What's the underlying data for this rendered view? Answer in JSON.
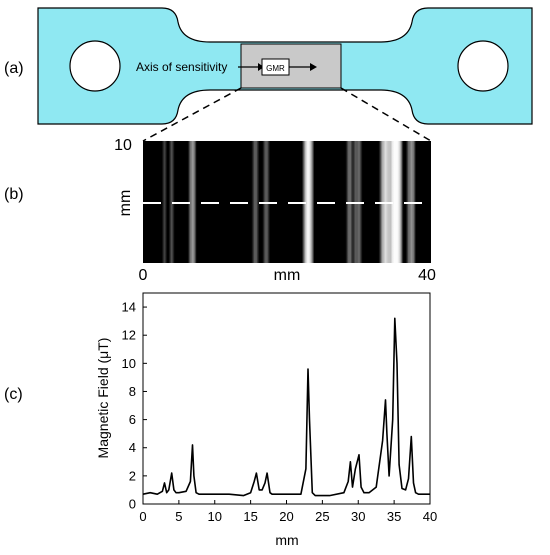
{
  "panels": {
    "a": {
      "label": "(a)",
      "sensitivity_label": "Axis of sensitivity",
      "sensor_label": "GMR"
    },
    "b": {
      "label": "(b)",
      "ylabel": "mm",
      "xlabel": "mm",
      "x_ticks": [
        "0",
        "40"
      ],
      "y_ticks": [
        "10"
      ]
    },
    "c": {
      "label": "(c)"
    }
  },
  "colors": {
    "specimen_fill": "#8fe8f2",
    "sensor_region": "#c9c9c9",
    "scan_background": "#000000",
    "scan_line": "#ffffff",
    "trace": "#000000"
  },
  "chart_data": {
    "type": "line",
    "xlabel": "mm",
    "ylabel": "Magnetic Field (μT)",
    "xlim": [
      0,
      40
    ],
    "ylim": [
      0,
      15
    ],
    "x_ticks": [
      0,
      5,
      10,
      15,
      20,
      25,
      30,
      35,
      40
    ],
    "y_ticks": [
      0,
      2,
      4,
      6,
      8,
      10,
      12,
      14
    ],
    "grid": false,
    "series": [
      {
        "x": [
          0.0,
          1.0,
          2.0,
          2.7,
          3.0,
          3.3,
          3.6,
          4.0,
          4.3,
          4.6,
          5.0,
          6.0,
          6.6,
          6.9,
          7.1,
          7.4,
          7.8,
          8.5,
          10.0,
          12.0,
          14.0,
          15.0,
          15.5,
          15.8,
          16.2,
          16.6,
          17.0,
          17.3,
          17.7,
          18.0,
          20.0,
          22.0,
          22.7,
          23.0,
          23.2,
          23.6,
          24.0,
          26.0,
          28.0,
          28.6,
          28.9,
          29.2,
          29.6,
          30.1,
          30.4,
          30.8,
          31.5,
          32.5,
          33.4,
          33.8,
          34.0,
          34.3,
          34.8,
          35.1,
          35.4,
          35.7,
          36.1,
          36.6,
          37.0,
          37.4,
          37.7,
          38.0,
          38.4,
          39.0,
          40.0
        ],
        "y": [
          0.7,
          0.8,
          0.7,
          0.9,
          1.5,
          0.8,
          1.0,
          2.2,
          1.0,
          0.8,
          0.8,
          0.9,
          1.6,
          4.2,
          2.0,
          0.8,
          0.7,
          0.7,
          0.7,
          0.7,
          0.6,
          0.8,
          1.6,
          2.2,
          1.0,
          1.0,
          1.5,
          2.2,
          0.8,
          0.7,
          0.7,
          0.7,
          2.5,
          9.6,
          6.0,
          0.8,
          0.6,
          0.6,
          0.8,
          1.6,
          3.0,
          1.2,
          2.5,
          3.5,
          1.2,
          0.8,
          0.8,
          1.2,
          4.5,
          7.4,
          5.0,
          2.0,
          6.0,
          13.2,
          10.0,
          2.8,
          1.1,
          1.0,
          1.8,
          4.8,
          1.5,
          0.8,
          0.7,
          0.7,
          0.7
        ]
      }
    ]
  }
}
